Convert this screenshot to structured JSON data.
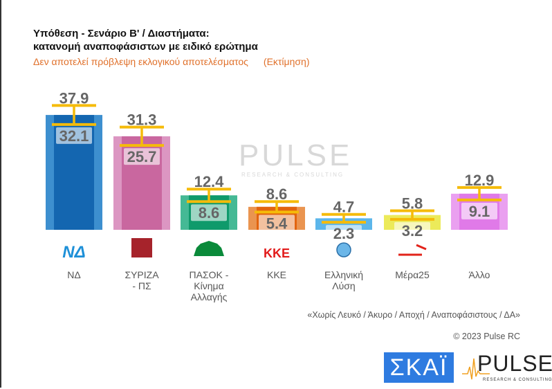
{
  "title_line1": "Υπόθεση - Σενάριο Β' / Διαστήματα:",
  "title_line2": "κατανομή αναποφάσιστων με ειδικό ερώτημα",
  "subtitle": "Δεν αποτελεί πρόβλεψη εκλογικού αποτελέσματος",
  "subtitle_tag": "(Εκτίμηση)",
  "note": "«Χωρίς Λευκό / Άκυρο / Αποχή / Αναποφάσιστους / ΔΑ»",
  "copyright": "© 2023 Pulse RC",
  "logos": {
    "skai": "ΣΚΑΪ",
    "pulse": "PULSE",
    "pulse_sub": "RESEARCH & CONSULTING"
  },
  "chart_data": {
    "type": "bar",
    "categories": [
      "ΝΔ",
      "ΣΥΡΙΖΑ - ΠΣ",
      "ΠΑΣΟΚ - Κίνημα Αλλαγής",
      "ΚΚΕ",
      "Ελληνική Λύση",
      "Μέρα25",
      "Άλλο"
    ],
    "label_lines": [
      [
        "ΝΔ"
      ],
      [
        "ΣΥΡΙΖΑ",
        "- ΠΣ"
      ],
      [
        "ΠΑΣΟΚ -",
        "Κίνημα",
        "Αλλαγής"
      ],
      [
        "ΚΚΕ"
      ],
      [
        "Ελληνική",
        "Λύση"
      ],
      [
        "Μέρα25"
      ],
      [
        "Άλλο"
      ]
    ],
    "series": [
      {
        "values": [
          32.1,
          25.7,
          8.6,
          5.4,
          2.3,
          3.2,
          9.1
        ]
      },
      {
        "values": [
          37.9,
          31.3,
          12.4,
          8.6,
          4.7,
          5.8,
          12.9
        ]
      }
    ],
    "colors": [
      "#1466b0",
      "#c9679f",
      "#0f9a6b",
      "#e2640f",
      "#5cb6ea",
      "#ecea5a",
      "#e07ae8"
    ],
    "colors_light": [
      "#3d8fcf",
      "#dc96c2",
      "#45b995",
      "#ea9450",
      "#5cb6ea",
      "#ecea5a",
      "#eaa0f0"
    ],
    "whisker_color": "#f5bb0a",
    "ylim": [
      0,
      40
    ],
    "grid": false
  }
}
